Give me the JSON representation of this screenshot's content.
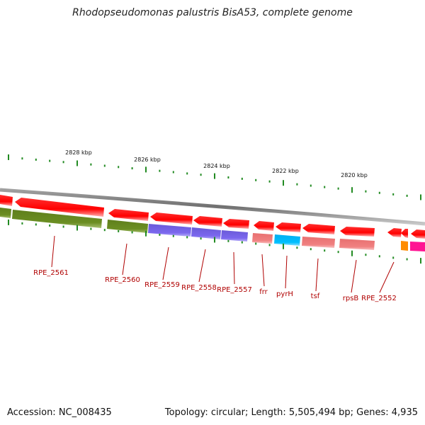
{
  "title": "Rhodopseudomonas palustris BisA53, complete genome",
  "footer": {
    "accession": "Accession: NC_008435",
    "summary": "Topology: circular; Length: 5,505,494 bp; Genes: 4,935"
  },
  "ticks": [
    {
      "label": "2828 kbp"
    },
    {
      "label": "2826 kbp"
    },
    {
      "label": "2824 kbp"
    },
    {
      "label": "2822 kbp"
    },
    {
      "label": "2820 kbp"
    }
  ],
  "genes": [
    {
      "label": "RPE_2561"
    },
    {
      "label": "RPE_2560"
    },
    {
      "label": "RPE_2559"
    },
    {
      "label": "RPE_2558"
    },
    {
      "label": "RPE_2557"
    },
    {
      "label": "frr"
    },
    {
      "label": "pyrH"
    },
    {
      "label": "tsf"
    },
    {
      "label": "rpsB"
    },
    {
      "label": "RPE_2552"
    }
  ],
  "colors": {
    "cds": "#ff0000",
    "backbone": "#8a8a8a",
    "green": "#6b8e23",
    "purple": "#7b68ee",
    "salmon": "#f08080",
    "cyan": "#00bfff",
    "orange": "#ff8c00",
    "magenta": "#ff1493",
    "tick": "#228b22",
    "label": "#b00000"
  }
}
